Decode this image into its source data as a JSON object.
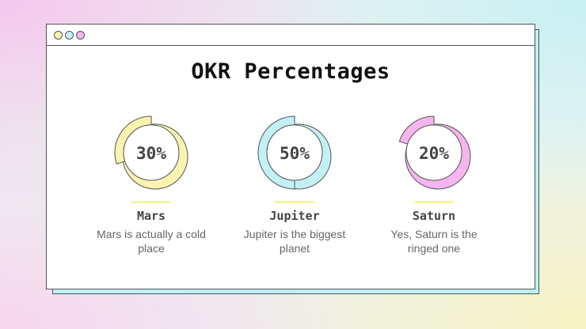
{
  "slide": {
    "title": "OKR Percentages"
  },
  "window_dots": [
    "yellow",
    "cyan",
    "pink"
  ],
  "items": [
    {
      "percent": "30%",
      "value": 30,
      "name": "Mars",
      "description": "Mars is actually a cold place",
      "color": "#fbf3b0"
    },
    {
      "percent": "50%",
      "value": 50,
      "name": "Jupiter",
      "description": "Jupiter is the biggest planet",
      "color": "#c3f0f4"
    },
    {
      "percent": "20%",
      "value": 20,
      "name": "Saturn",
      "description": "Yes, Saturn is the ringed one",
      "color": "#f6b5ee"
    }
  ],
  "colors": {
    "underline": "#fbf3a0",
    "outline": "#555555",
    "window_background": "#ffffff",
    "shadow": "#bdf0f4"
  }
}
